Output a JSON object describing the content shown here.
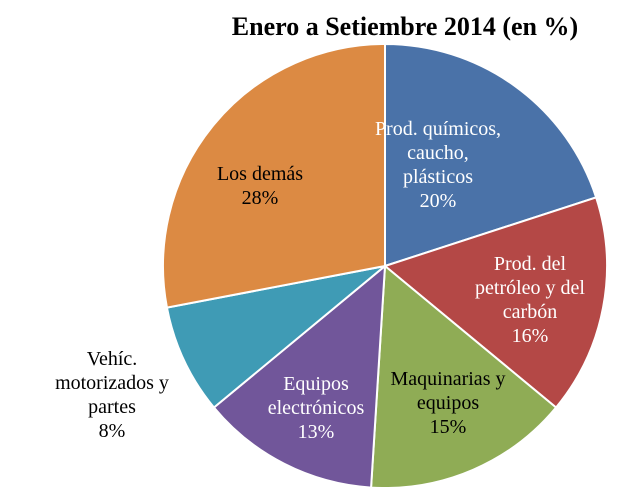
{
  "chart_data": {
    "type": "pie",
    "title": "Enero a Setiembre 2014 (en %)",
    "categories": [
      "Prod. químicos, caucho, plásticos",
      "Prod. del petróleo y del carbón",
      "Maquinarias y equipos",
      "Equipos electrónicos",
      "Vehíc. motorizados y partes",
      "Los demás"
    ],
    "values": [
      20,
      16,
      15,
      13,
      8,
      28
    ],
    "value_labels": [
      "20%",
      "16%",
      "15%",
      "13%",
      "8%",
      "28%"
    ],
    "colors": [
      "#4a72a8",
      "#b44846",
      "#8fac55",
      "#71569a",
      "#3f9bb5",
      "#dc8a43"
    ]
  }
}
